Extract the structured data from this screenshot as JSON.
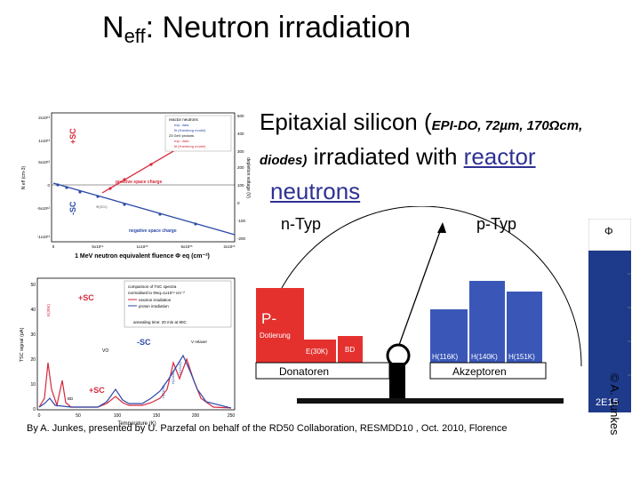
{
  "title": {
    "main": "N",
    "sub": "eff",
    "rest": ": Neutron irradiation"
  },
  "bullet": {
    "lead": "Epitaxial silicon (",
    "detail": "EPI-DO, 72µm, 170Ωcm, diodes)",
    "mid": " irradiated with ",
    "link1": "reactor",
    "link2": "neutrons"
  },
  "plot_top": {
    "legend_title": "reactor neutrons",
    "legend_items": [
      "exp. data",
      "fit (Hamburg model)",
      "23 GeV protons",
      "exp. data",
      "fit (Hamburg model)"
    ],
    "label_positive": "positive space charge",
    "label_negative": "negative space charge",
    "label_psc": "+SC",
    "label_nsc": "-SC",
    "ylabel": "N eff (cm-3)",
    "y2label": "depletion voltage (V)",
    "xlabel": "1 MeV neutron equivalent fluence Φ eq (cm⁻²)",
    "y_ticks": [
      "2x10¹³",
      "1x10¹³",
      "5x10¹²",
      "0",
      "-5x10¹²",
      "-1x10¹³"
    ],
    "y2_ticks": [
      "500",
      "400",
      "300",
      "200",
      "100",
      "0",
      "-100",
      "-200"
    ],
    "x_ticks": [
      "0",
      "5x10¹⁴",
      "1x10¹⁵",
      "5x10¹⁵",
      "2x10¹⁵"
    ],
    "note": "Φ(SCI)"
  },
  "plot_bottom": {
    "legend_lines": [
      "comparison of TSC spectra",
      "normalised to Φeq=1x10¹⁴ cm⁻²",
      "neutron irradiation",
      "proton irradiation"
    ],
    "annealing": "annealing time: 20 min at 80C",
    "label_psc": "+SC",
    "label_nsc": "-SC",
    "label_psc2": "+SC",
    "label_vo": "VO",
    "label_e30k": "E(30K)",
    "label_vrelaxer": "V relaxer",
    "label_h116": "H(116K)",
    "label_h140": "H(140K)",
    "label_h152": "H(152K)",
    "label_bd": "BD",
    "ylabel": "TSC signal (pA)",
    "xlabel": "Temperature (K)",
    "y_ticks": [
      "50",
      "40",
      "30",
      "20",
      "10",
      "0"
    ],
    "x_ticks": [
      "0",
      "50",
      "100",
      "150",
      "200",
      "250"
    ]
  },
  "balance": {
    "left_title": "n-Typ",
    "right_title": "p-Typ",
    "p_label": "P-",
    "p_sub": "Dotierung",
    "e30k": "E(30K)",
    "bd": "BD",
    "donors": "Donatoren",
    "acceptors": "Akzeptoren",
    "h116": "H(116K)",
    "h140": "H(140K)",
    "h151": "H(151K)"
  },
  "phi": {
    "symbol": "Φ",
    "value": "2E15"
  },
  "copyright": "© A. Junkes",
  "footer": "By A. Junkes, presented by U. Parzefal on behalf of the RD50 Collaboration, RESMDD10 , Oct. 2010, Florence"
}
